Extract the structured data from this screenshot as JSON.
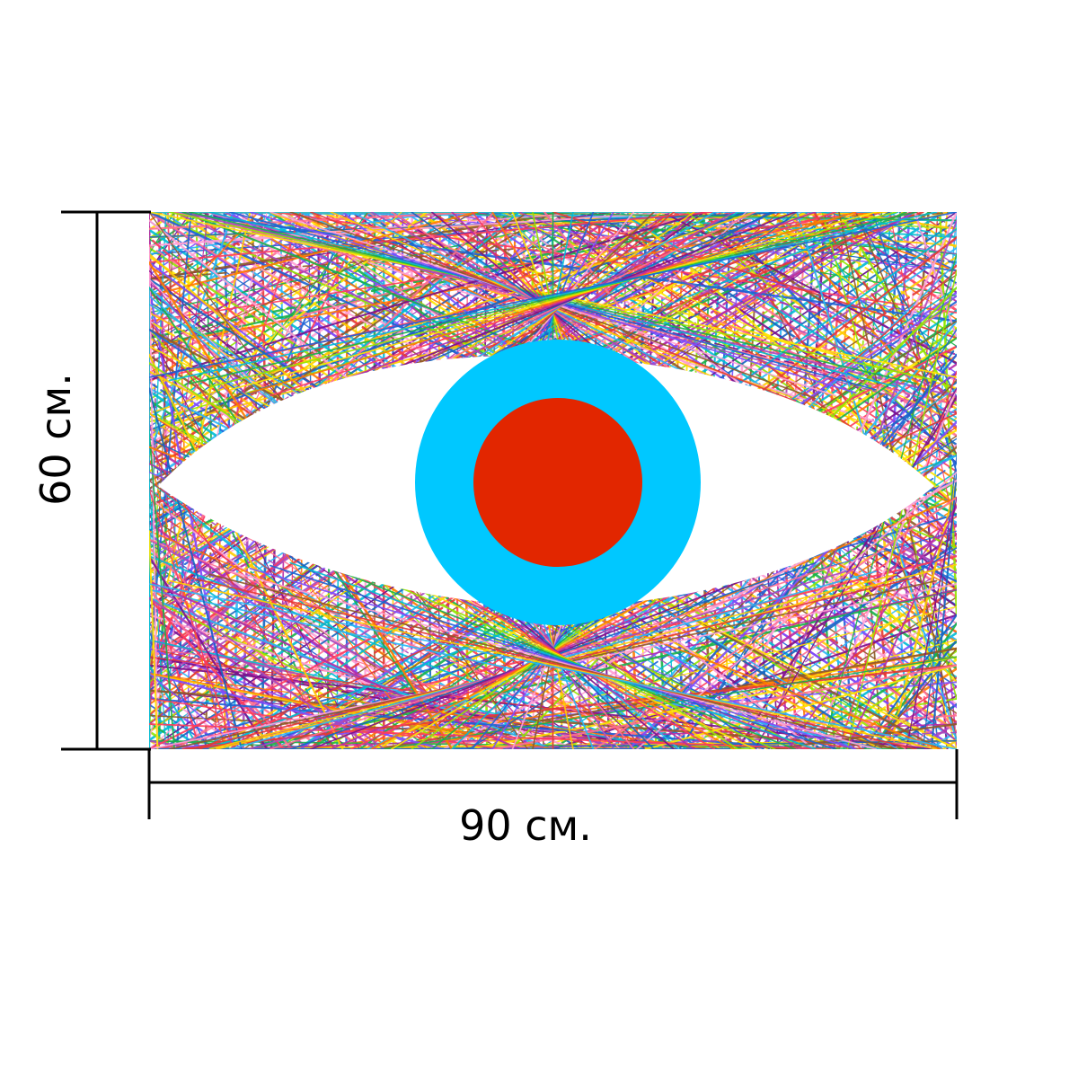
{
  "dimensions": {
    "width_label": "90 см.",
    "height_label": "60 см."
  },
  "artwork": {
    "subject": "eye",
    "sclera_color": "#ffffff",
    "iris_color": "#00c8ff",
    "pupil_color": "#e22600"
  },
  "palette": [
    "#7a0f8b",
    "#b82aa6",
    "#ff3b5b",
    "#ff7a00",
    "#ffe600",
    "#93e600",
    "#19b14a",
    "#00bcd4",
    "#1e63d6",
    "#7c4dff",
    "#ff9fd6",
    "#8e5a28",
    "#e53935",
    "#ffcc00",
    "#29b6f6",
    "#ab47bc",
    "#ff6f91",
    "#1565c0"
  ]
}
